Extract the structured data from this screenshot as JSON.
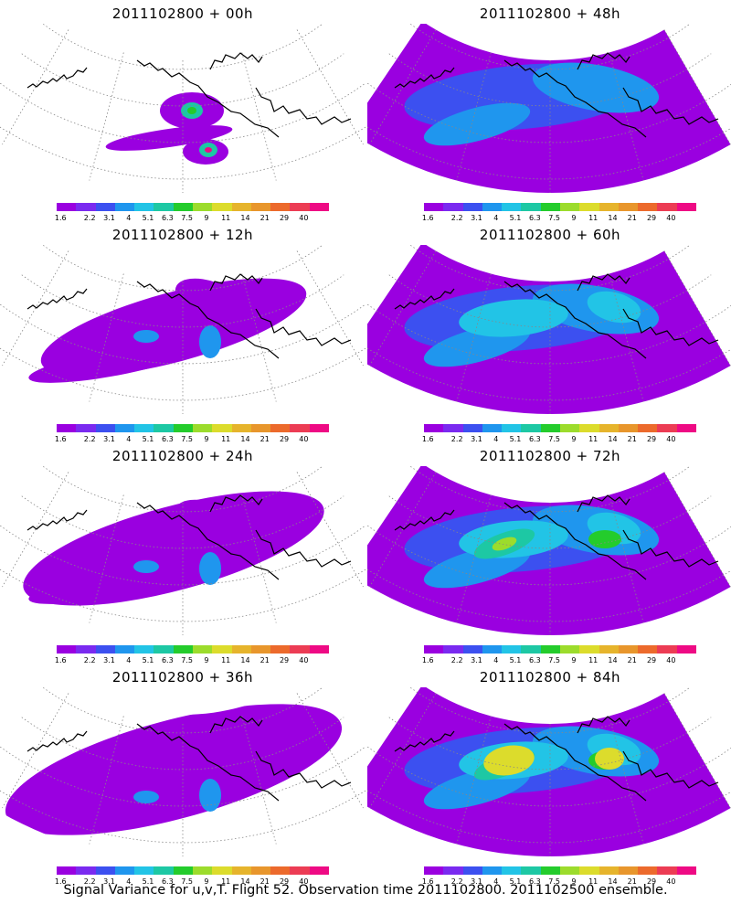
{
  "panels": [
    {
      "title": "2011102800 + 00h",
      "intensity": 0
    },
    {
      "title": "2011102800 + 48h",
      "intensity": 4
    },
    {
      "title": "2011102800 + 12h",
      "intensity": 1
    },
    {
      "title": "2011102800 + 60h",
      "intensity": 5
    },
    {
      "title": "2011102800 + 24h",
      "intensity": 2
    },
    {
      "title": "2011102800 + 72h",
      "intensity": 6
    },
    {
      "title": "2011102800 + 36h",
      "intensity": 3
    },
    {
      "title": "2011102800 + 84h",
      "intensity": 7
    }
  ],
  "colorbar": {
    "colors": [
      "#9a00e0",
      "#7a2af0",
      "#3c50f0",
      "#1f96ee",
      "#22c4e6",
      "#1dc8a4",
      "#24cc2c",
      "#9cdc2c",
      "#dcdc2c",
      "#e6b42c",
      "#e8962c",
      "#ec6a2c",
      "#ec3c54",
      "#ee0a84"
    ],
    "labels": [
      "1.6",
      "2.2",
      "3.1",
      "4",
      "5.1",
      "6.3",
      "7.5",
      "9",
      "11",
      "14",
      "21",
      "29",
      "40"
    ]
  },
  "caption": "Signal Variance for u,v,T. Flight 52. Observation time 2011102800. 2011102500 ensemble."
}
